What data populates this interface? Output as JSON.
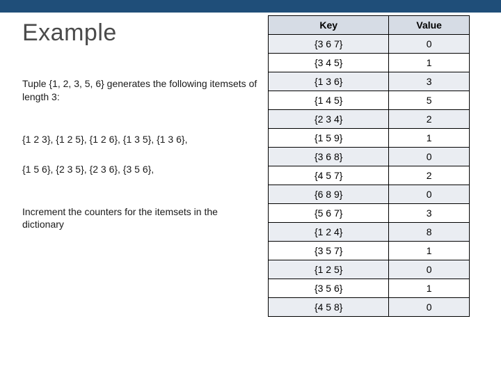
{
  "top_bar_color": "#1f4e79",
  "title": "Example",
  "paragraphs": {
    "p1": "Tuple {1, 2, 3, 5, 6} generates the following itemsets of length 3:",
    "p2": "{1 2 3}, {1 2 5}, {1 2 6}, {1 3 5}, {1 3 6},",
    "p3": "{1 5 6}, {2 3 5}, {2 3 6}, {3 5 6},",
    "p4": "Increment the counters for the itemsets in the dictionary"
  },
  "table": {
    "columns": [
      "Key",
      "Value"
    ],
    "col_widths_pct": [
      60,
      40
    ],
    "header_bg": "#d6dce5",
    "row_alt_bg": "#eaedf2",
    "border_color": "#000000",
    "font_size_pt": 10,
    "rows": [
      [
        "{3 6 7}",
        "0"
      ],
      [
        "{3 4 5}",
        "1"
      ],
      [
        "{1 3 6}",
        "3"
      ],
      [
        "{1 4 5}",
        "5"
      ],
      [
        "{2 3 4}",
        "2"
      ],
      [
        "{1 5 9}",
        "1"
      ],
      [
        "{3 6 8}",
        "0"
      ],
      [
        "{4 5 7}",
        "2"
      ],
      [
        "{6 8 9}",
        "0"
      ],
      [
        "{5 6 7}",
        "3"
      ],
      [
        "{1 2 4}",
        "8"
      ],
      [
        "{3 5 7}",
        "1"
      ],
      [
        "{1 2 5}",
        "0"
      ],
      [
        "{3 5 6}",
        "1"
      ],
      [
        "{4 5 8}",
        "0"
      ]
    ]
  }
}
